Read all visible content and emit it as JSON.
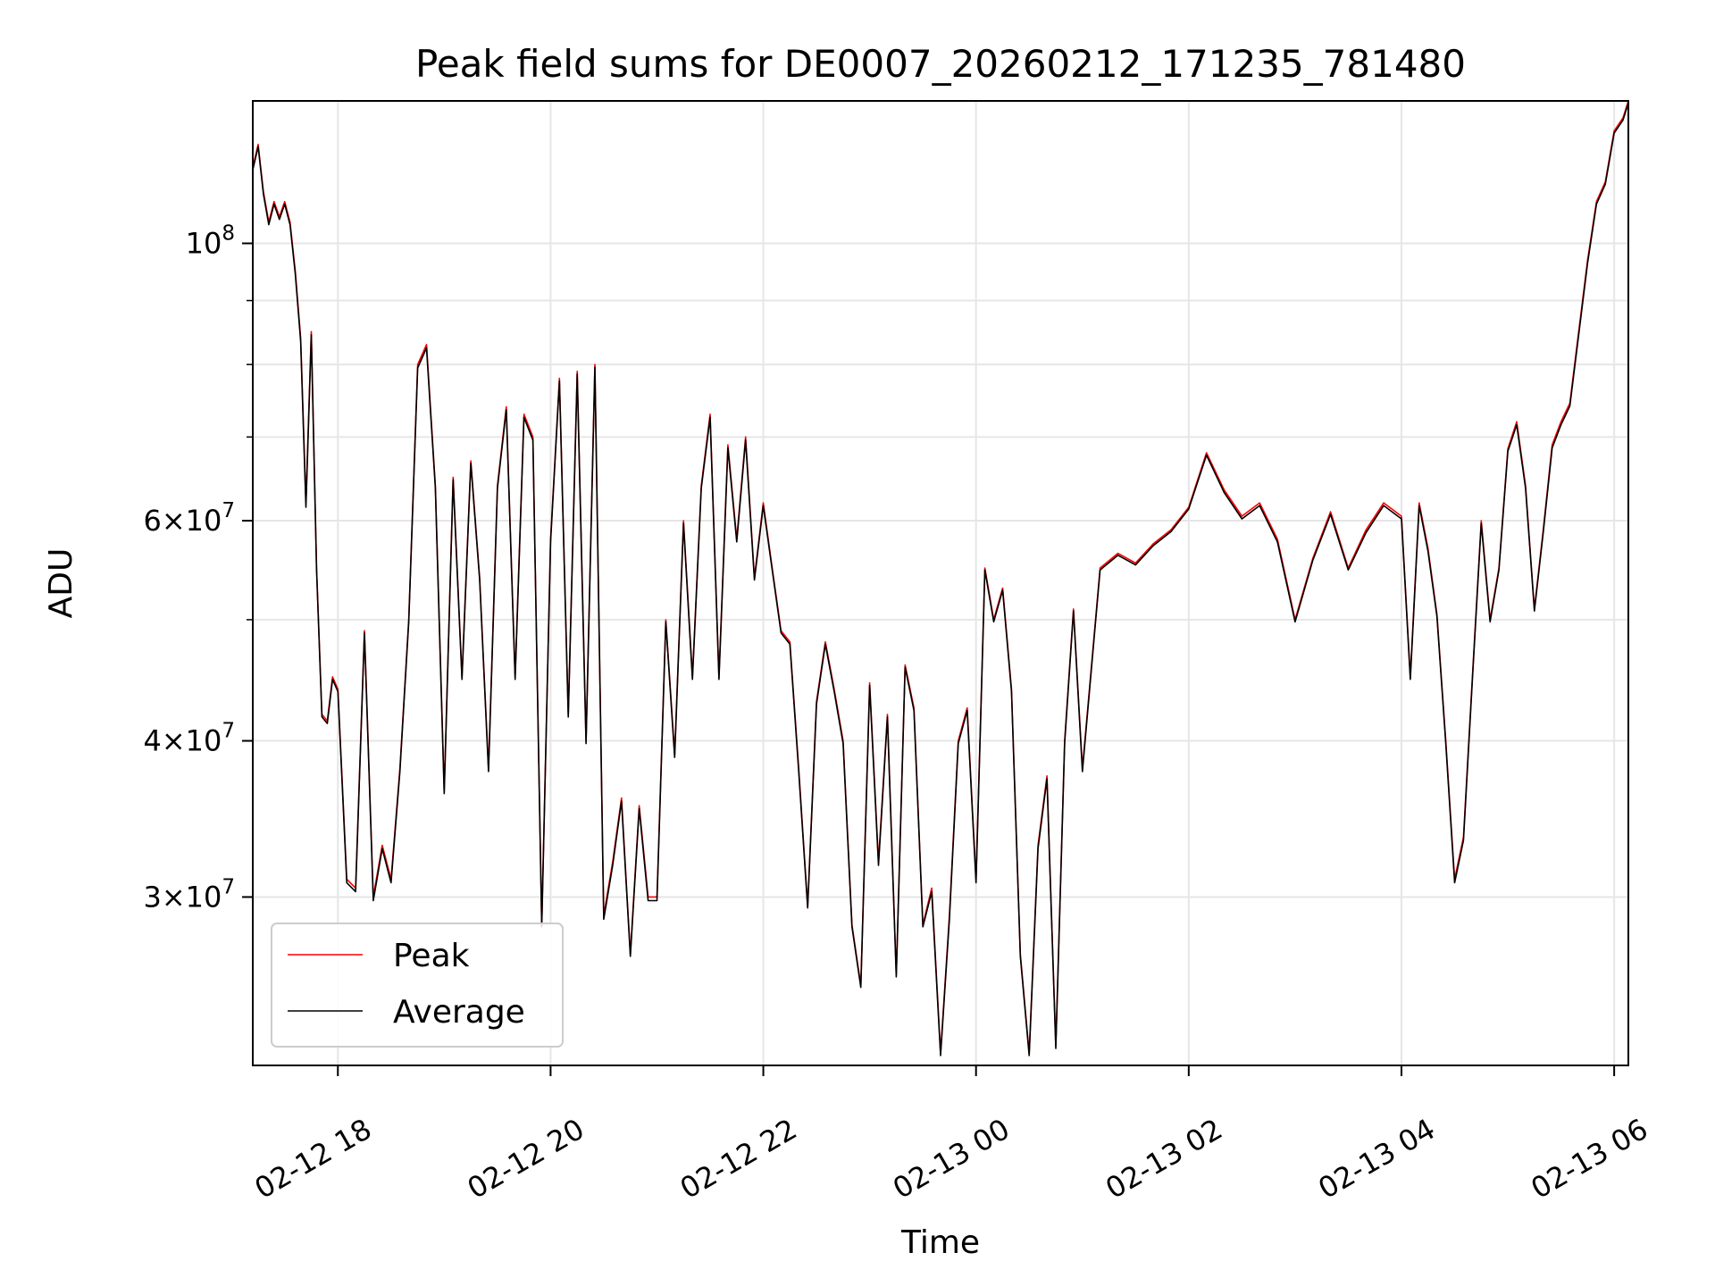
{
  "chart_data": {
    "type": "line",
    "title": "Peak field sums for DE0007_20260212_171235_781480",
    "xlabel": "Time",
    "ylabel": "ADU",
    "y_scale": "log",
    "ylim": [
      22000000,
      130000000
    ],
    "xlim": [
      "2026-02-12 17:12",
      "2026-02-13 06:08"
    ],
    "grid": true,
    "legend_position": "lower-left",
    "x_ticks": [
      {
        "value": "2026-02-12 18:00",
        "label": "02-12 18"
      },
      {
        "value": "2026-02-12 20:00",
        "label": "02-12 20"
      },
      {
        "value": "2026-02-12 22:00",
        "label": "02-12 22"
      },
      {
        "value": "2026-02-13 00:00",
        "label": "02-13 00"
      },
      {
        "value": "2026-02-13 02:00",
        "label": "02-13 02"
      },
      {
        "value": "2026-02-13 04:00",
        "label": "02-13 04"
      },
      {
        "value": "2026-02-13 06:00",
        "label": "02-13 06"
      }
    ],
    "y_ticks": [
      {
        "value": 30000000,
        "base": "3",
        "exp": "7"
      },
      {
        "value": 40000000,
        "base": "4",
        "exp": "7"
      },
      {
        "value": 60000000,
        "base": "6",
        "exp": "7"
      },
      {
        "value": 100000000,
        "base": "",
        "exp": "8"
      }
    ],
    "y_minor_ticks": [
      50000000,
      70000000,
      80000000,
      90000000
    ],
    "series": [
      {
        "name": "Peak",
        "color": "#ff0000"
      },
      {
        "name": "Average",
        "color": "#000000"
      }
    ],
    "x": [
      "2026-02-12 17:12",
      "2026-02-12 17:15",
      "2026-02-12 17:18",
      "2026-02-12 17:21",
      "2026-02-12 17:24",
      "2026-02-12 17:27",
      "2026-02-12 17:30",
      "2026-02-12 17:33",
      "2026-02-12 17:36",
      "2026-02-12 17:39",
      "2026-02-12 17:42",
      "2026-02-12 17:45",
      "2026-02-12 17:48",
      "2026-02-12 17:51",
      "2026-02-12 17:54",
      "2026-02-12 17:57",
      "2026-02-12 18:00",
      "2026-02-12 18:05",
      "2026-02-12 18:10",
      "2026-02-12 18:15",
      "2026-02-12 18:20",
      "2026-02-12 18:25",
      "2026-02-12 18:30",
      "2026-02-12 18:35",
      "2026-02-12 18:40",
      "2026-02-12 18:45",
      "2026-02-12 18:50",
      "2026-02-12 18:55",
      "2026-02-12 19:00",
      "2026-02-12 19:05",
      "2026-02-12 19:10",
      "2026-02-12 19:15",
      "2026-02-12 19:20",
      "2026-02-12 19:25",
      "2026-02-12 19:30",
      "2026-02-12 19:35",
      "2026-02-12 19:40",
      "2026-02-12 19:45",
      "2026-02-12 19:50",
      "2026-02-12 19:55",
      "2026-02-12 20:00",
      "2026-02-12 20:05",
      "2026-02-12 20:10",
      "2026-02-12 20:15",
      "2026-02-12 20:20",
      "2026-02-12 20:25",
      "2026-02-12 20:30",
      "2026-02-12 20:35",
      "2026-02-12 20:40",
      "2026-02-12 20:45",
      "2026-02-12 20:50",
      "2026-02-12 20:55",
      "2026-02-12 21:00",
      "2026-02-12 21:05",
      "2026-02-12 21:10",
      "2026-02-12 21:15",
      "2026-02-12 21:20",
      "2026-02-12 21:25",
      "2026-02-12 21:30",
      "2026-02-12 21:35",
      "2026-02-12 21:40",
      "2026-02-12 21:45",
      "2026-02-12 21:50",
      "2026-02-12 21:55",
      "2026-02-12 22:00",
      "2026-02-12 22:05",
      "2026-02-12 22:10",
      "2026-02-12 22:15",
      "2026-02-12 22:20",
      "2026-02-12 22:25",
      "2026-02-12 22:30",
      "2026-02-12 22:35",
      "2026-02-12 22:40",
      "2026-02-12 22:45",
      "2026-02-12 22:50",
      "2026-02-12 22:55",
      "2026-02-12 23:00",
      "2026-02-12 23:05",
      "2026-02-12 23:10",
      "2026-02-12 23:15",
      "2026-02-12 23:20",
      "2026-02-12 23:25",
      "2026-02-12 23:30",
      "2026-02-12 23:35",
      "2026-02-12 23:40",
      "2026-02-12 23:45",
      "2026-02-12 23:50",
      "2026-02-12 23:55",
      "2026-02-13 00:00",
      "2026-02-13 00:05",
      "2026-02-13 00:10",
      "2026-02-13 00:15",
      "2026-02-13 00:20",
      "2026-02-13 00:25",
      "2026-02-13 00:30",
      "2026-02-13 00:35",
      "2026-02-13 00:40",
      "2026-02-13 00:45",
      "2026-02-13 00:50",
      "2026-02-13 00:55",
      "2026-02-13 01:00",
      "2026-02-13 01:10",
      "2026-02-13 01:20",
      "2026-02-13 01:30",
      "2026-02-13 01:40",
      "2026-02-13 01:50",
      "2026-02-13 02:00",
      "2026-02-13 02:10",
      "2026-02-13 02:20",
      "2026-02-13 02:30",
      "2026-02-13 02:40",
      "2026-02-13 02:50",
      "2026-02-13 03:00",
      "2026-02-13 03:10",
      "2026-02-13 03:20",
      "2026-02-13 03:30",
      "2026-02-13 03:40",
      "2026-02-13 03:50",
      "2026-02-13 04:00",
      "2026-02-13 04:05",
      "2026-02-13 04:10",
      "2026-02-13 04:15",
      "2026-02-13 04:20",
      "2026-02-13 04:25",
      "2026-02-13 04:30",
      "2026-02-13 04:35",
      "2026-02-13 04:40",
      "2026-02-13 04:45",
      "2026-02-13 04:50",
      "2026-02-13 04:55",
      "2026-02-13 05:00",
      "2026-02-13 05:05",
      "2026-02-13 05:10",
      "2026-02-13 05:15",
      "2026-02-13 05:20",
      "2026-02-13 05:25",
      "2026-02-13 05:30",
      "2026-02-13 05:35",
      "2026-02-13 05:40",
      "2026-02-13 05:45",
      "2026-02-13 05:50",
      "2026-02-13 05:55",
      "2026-02-13 06:00",
      "2026-02-13 06:05",
      "2026-02-13 06:08"
    ],
    "peak": [
      115000000,
      120000000,
      110000000,
      104000000,
      108000000,
      105000000,
      108000000,
      104000000,
      95000000,
      84000000,
      62000000,
      85000000,
      55000000,
      42000000,
      41500000,
      45000000,
      44000000,
      31000000,
      30500000,
      49000000,
      30000000,
      33000000,
      31000000,
      38000000,
      50000000,
      80000000,
      83000000,
      64000000,
      36500000,
      65000000,
      45000000,
      67000000,
      54000000,
      38000000,
      64000000,
      74000000,
      45000000,
      73000000,
      70000000,
      28500000,
      58000000,
      78000000,
      42000000,
      79000000,
      40000000,
      80000000,
      29000000,
      32000000,
      36000000,
      27000000,
      35500000,
      30000000,
      30000000,
      50000000,
      39000000,
      60000000,
      45000000,
      64000000,
      73000000,
      45000000,
      69000000,
      58000000,
      70000000,
      54000000,
      62000000,
      55000000,
      49000000,
      48000000,
      38000000,
      29500000,
      43000000,
      48000000,
      44000000,
      40000000,
      28500000,
      25500000,
      44500000,
      32000000,
      42000000,
      26000000,
      46000000,
      42500000,
      28500000,
      30500000,
      22500000,
      29000000,
      40000000,
      42500000,
      31000000,
      55000000,
      50000000,
      53000000,
      44000000,
      27000000,
      22500000,
      33000000,
      37500000,
      22800000,
      40000000,
      51000000,
      38000000,
      55000000,
      56500000,
      55500000,
      57500000,
      59000000,
      61500000,
      68000000,
      63500000,
      60500000,
      62000000,
      58000000,
      50000000,
      56000000,
      61000000,
      55000000,
      59000000,
      62000000,
      60500000,
      45000000,
      62000000,
      57000000,
      50500000,
      40000000,
      31000000,
      33500000,
      45000000,
      60000000,
      50000000,
      55000000,
      68500000,
      72000000,
      64000000,
      51000000,
      59000000,
      69000000,
      72000000,
      74500000,
      85000000,
      97000000,
      108000000,
      112000000,
      123000000,
      126000000,
      130000000
    ],
    "average": [
      114500000,
      119500000,
      109500000,
      103500000,
      107500000,
      104500000,
      107500000,
      103500000,
      94500000,
      83500000,
      61500000,
      84500000,
      54800000,
      41800000,
      41300000,
      44800000,
      43800000,
      30800000,
      30300000,
      48800000,
      29800000,
      32800000,
      30800000,
      37800000,
      49800000,
      79500000,
      82500000,
      63700000,
      36300000,
      64700000,
      44800000,
      66700000,
      53800000,
      37800000,
      63700000,
      73600000,
      44800000,
      72600000,
      69600000,
      28400000,
      57700000,
      77600000,
      41800000,
      78600000,
      39800000,
      79600000,
      28800000,
      31800000,
      35800000,
      26900000,
      35300000,
      29800000,
      29800000,
      49800000,
      38800000,
      59700000,
      44800000,
      63700000,
      72600000,
      44800000,
      68600000,
      57700000,
      69600000,
      53800000,
      61700000,
      54800000,
      48800000,
      47800000,
      37800000,
      29400000,
      42800000,
      47800000,
      43800000,
      39800000,
      28400000,
      25400000,
      44300000,
      31800000,
      41800000,
      25900000,
      45800000,
      42300000,
      28400000,
      30300000,
      22400000,
      28800000,
      39800000,
      42300000,
      30800000,
      54800000,
      49800000,
      52800000,
      43800000,
      26900000,
      22400000,
      32800000,
      37300000,
      22700000,
      39800000,
      50800000,
      37800000,
      54800000,
      56300000,
      55300000,
      57300000,
      58800000,
      61300000,
      67700000,
      63200000,
      60200000,
      61700000,
      57700000,
      49800000,
      55800000,
      60700000,
      54800000,
      58700000,
      61700000,
      60200000,
      44800000,
      61700000,
      56700000,
      50300000,
      39800000,
      30800000,
      33300000,
      44800000,
      59700000,
      49800000,
      54800000,
      68200000,
      71600000,
      63700000,
      50800000,
      58700000,
      68600000,
      71600000,
      74100000,
      84500000,
      96500000,
      107500000,
      111500000,
      122500000,
      125500000,
      129500000
    ]
  }
}
